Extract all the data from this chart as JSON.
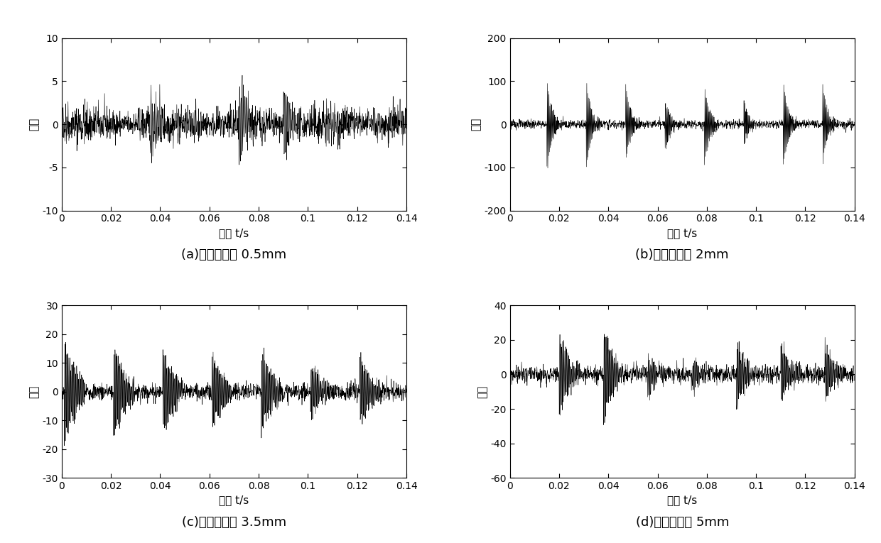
{
  "subplots": [
    {
      "label": "(a)故障直径为 0.5mm",
      "ylim": [
        -10,
        10
      ],
      "yticks": [
        -10,
        -5,
        0,
        5,
        10
      ],
      "noise_std": 1.2,
      "burst_interval": 0.018,
      "burst_amp": 4.0,
      "burst_decay": 300,
      "signal_type": "a"
    },
    {
      "label": "(b)故障直径为 2mm",
      "ylim": [
        -200,
        200
      ],
      "yticks": [
        -200,
        -100,
        0,
        100,
        200
      ],
      "noise_std": 5.0,
      "burst_interval": 0.016,
      "burst_amp": 120.0,
      "burst_decay": 500,
      "signal_type": "b"
    },
    {
      "label": "(c)故障直径为 3.5mm",
      "ylim": [
        -30,
        30
      ],
      "yticks": [
        -30,
        -20,
        -10,
        0,
        10,
        20,
        30
      ],
      "noise_std": 1.5,
      "burst_interval": 0.02,
      "burst_amp": 22.0,
      "burst_decay": 200,
      "signal_type": "c"
    },
    {
      "label": "(d)故障直径为 5mm",
      "ylim": [
        -60,
        40
      ],
      "yticks": [
        -60,
        -40,
        -20,
        0,
        20,
        40
      ],
      "noise_std": 2.5,
      "burst_interval": 0.018,
      "burst_amp": 30.0,
      "burst_decay": 250,
      "signal_type": "d"
    }
  ],
  "xlabel": "时间 t/s",
  "ylabel": "幅值",
  "xlim": [
    0,
    0.14
  ],
  "xticks": [
    0,
    0.02,
    0.04,
    0.06,
    0.08,
    0.1,
    0.12,
    0.14
  ],
  "fs": 12000,
  "duration": 0.14,
  "line_color": "#000000",
  "line_width": 0.4,
  "bg_color": "#ffffff",
  "label_fontsize": 13,
  "tick_fontsize": 10,
  "axis_label_fontsize": 11
}
